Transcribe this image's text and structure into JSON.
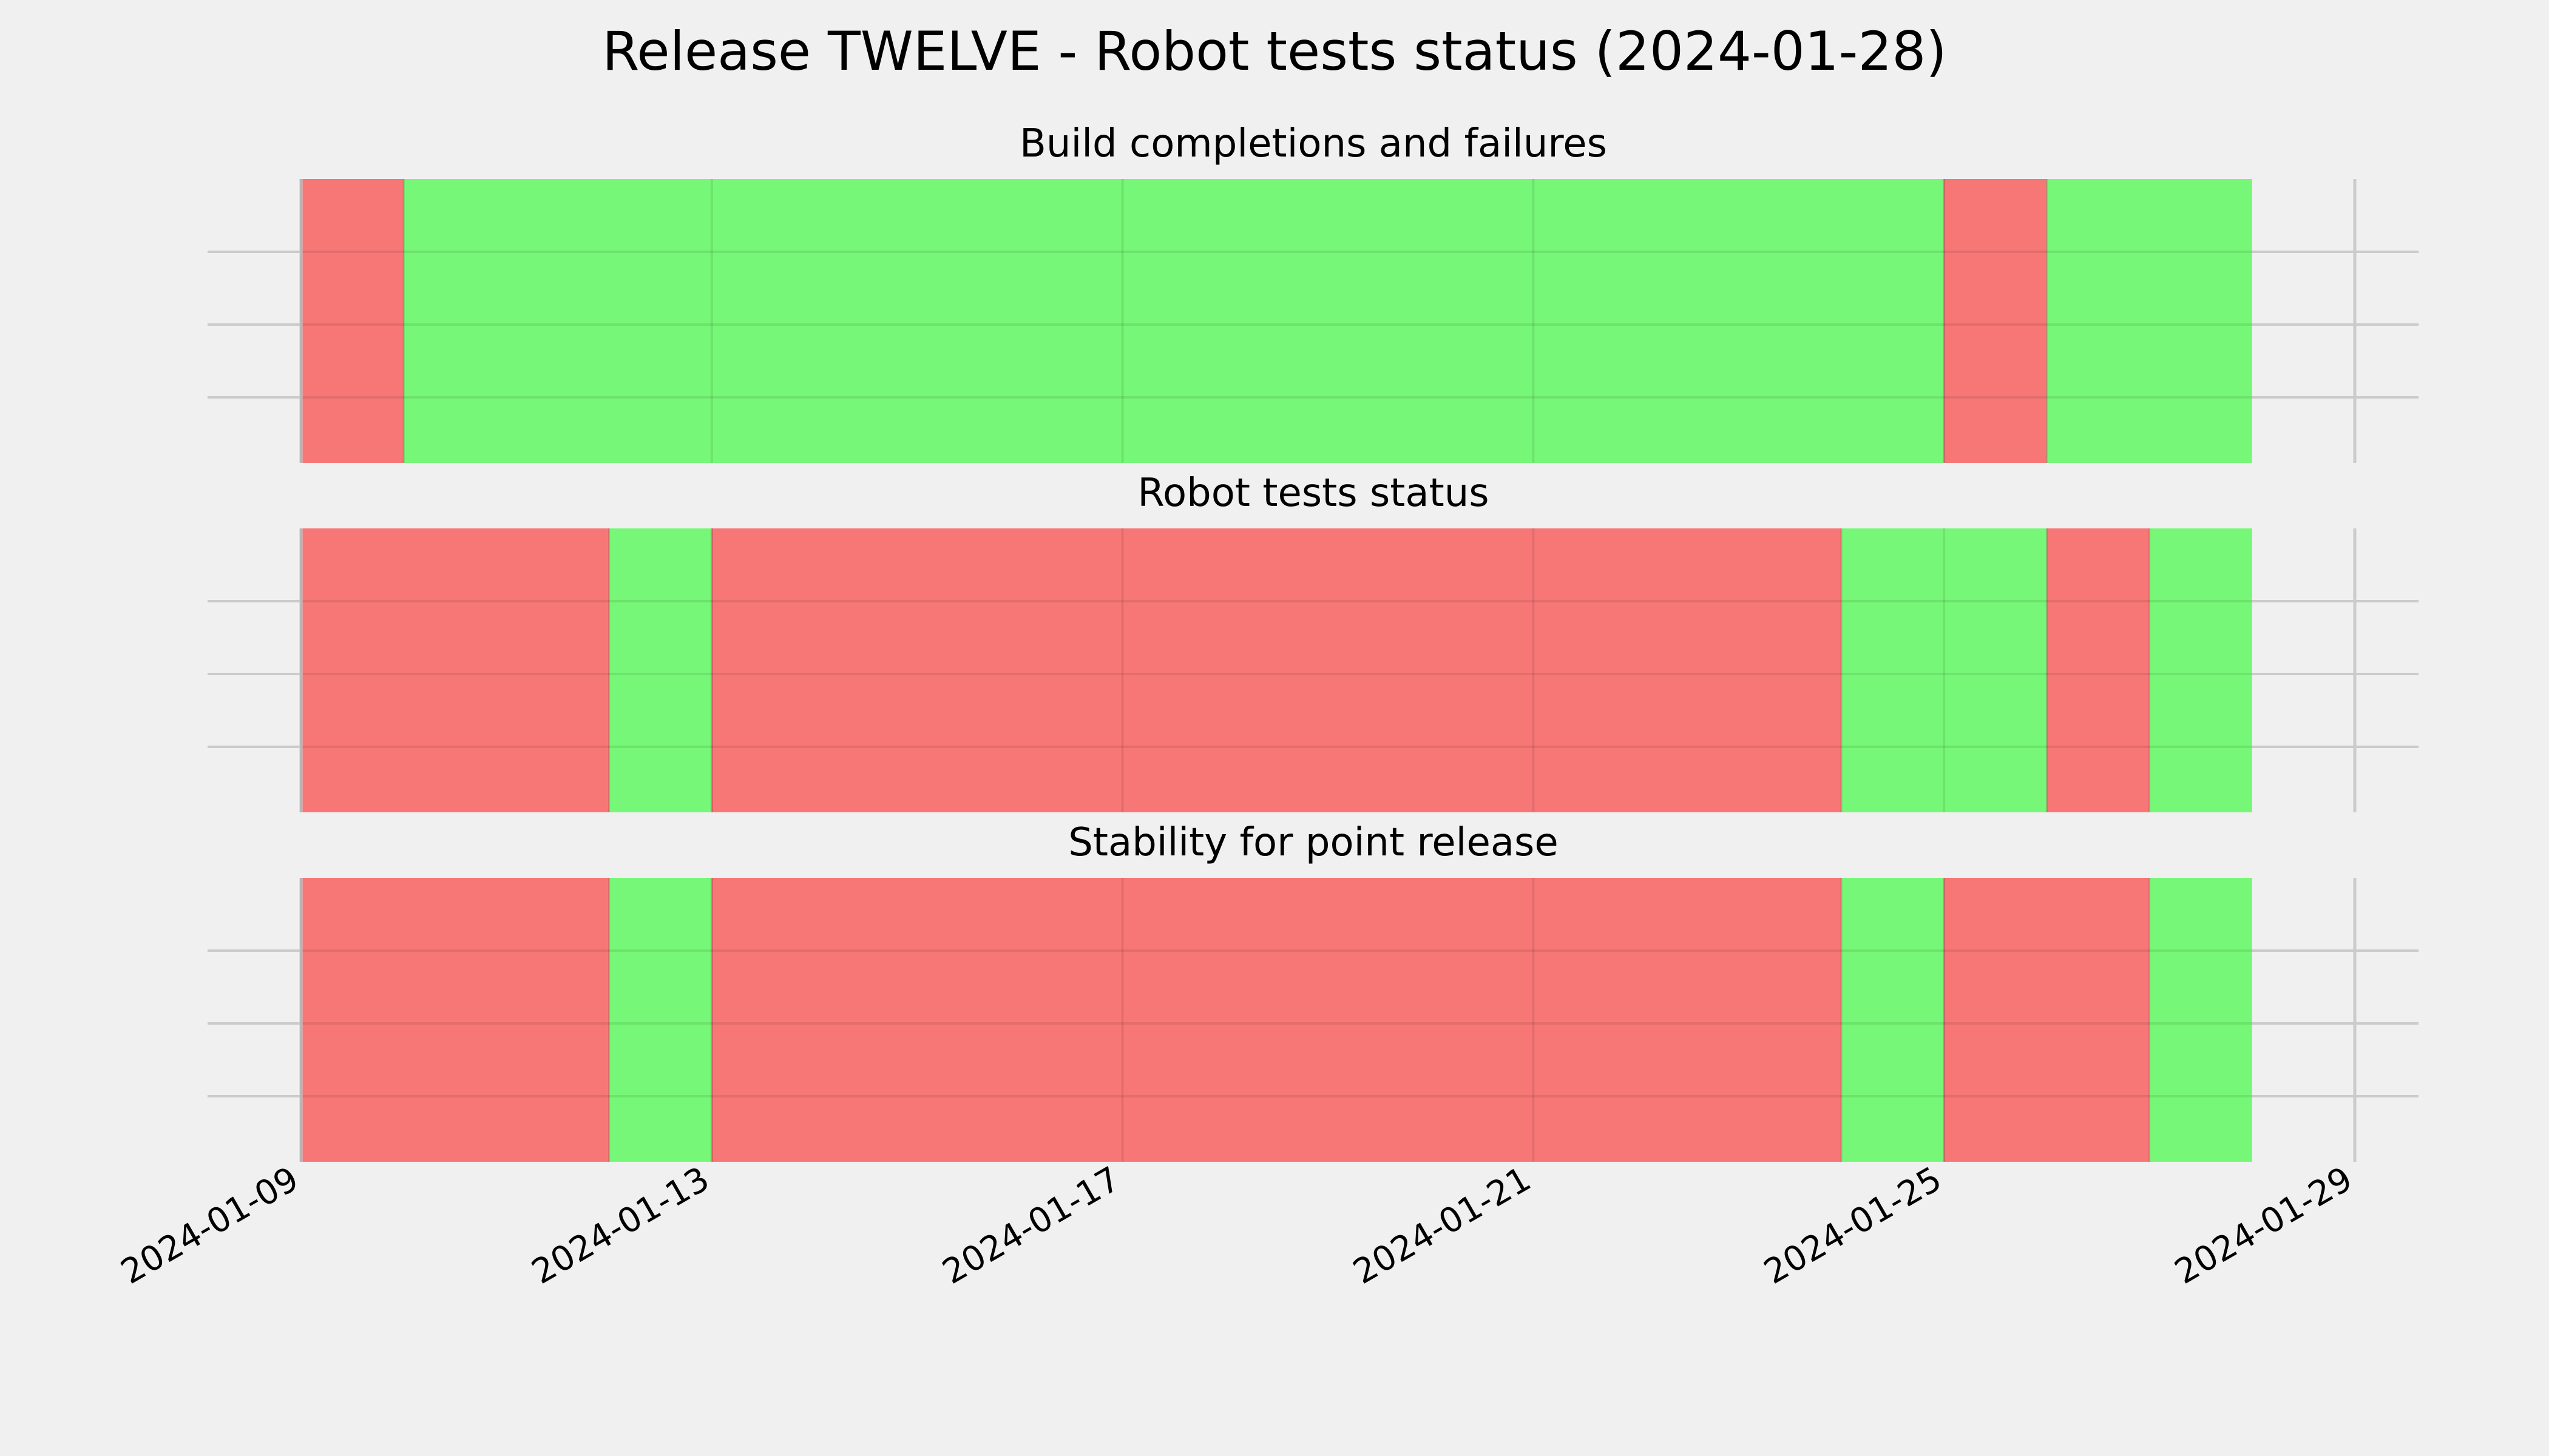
{
  "chart_data": {
    "type": "timeline",
    "title": "Release TWELVE - Robot tests status (2024-01-28)",
    "x_ticks": [
      "2024-01-09",
      "2024-01-13",
      "2024-01-17",
      "2024-01-21",
      "2024-01-25",
      "2024-01-29"
    ],
    "xlim": [
      "2024-01-09",
      "2024-01-29"
    ],
    "grid": true,
    "colors": {
      "pass": "#77f777",
      "fail": "#f77777",
      "background": "#f0f0f0",
      "grid": "#cbcbcb"
    },
    "panels": [
      {
        "title": "Build completions and failures",
        "segments": [
          {
            "start": "2024-01-09",
            "end": "2024-01-10",
            "status": "fail"
          },
          {
            "start": "2024-01-10",
            "end": "2024-01-25",
            "status": "pass"
          },
          {
            "start": "2024-01-25",
            "end": "2024-01-26",
            "status": "fail"
          },
          {
            "start": "2024-01-26",
            "end": "2024-01-28",
            "status": "pass"
          }
        ]
      },
      {
        "title": "Robot tests status",
        "segments": [
          {
            "start": "2024-01-09",
            "end": "2024-01-12",
            "status": "fail"
          },
          {
            "start": "2024-01-12",
            "end": "2024-01-13",
            "status": "pass"
          },
          {
            "start": "2024-01-13",
            "end": "2024-01-24",
            "status": "fail"
          },
          {
            "start": "2024-01-24",
            "end": "2024-01-26",
            "status": "pass"
          },
          {
            "start": "2024-01-26",
            "end": "2024-01-27",
            "status": "fail"
          },
          {
            "start": "2024-01-27",
            "end": "2024-01-28",
            "status": "pass"
          }
        ]
      },
      {
        "title": "Stability for point release",
        "segments": [
          {
            "start": "2024-01-09",
            "end": "2024-01-12",
            "status": "fail"
          },
          {
            "start": "2024-01-12",
            "end": "2024-01-13",
            "status": "pass"
          },
          {
            "start": "2024-01-13",
            "end": "2024-01-24",
            "status": "fail"
          },
          {
            "start": "2024-01-24",
            "end": "2024-01-25",
            "status": "pass"
          },
          {
            "start": "2024-01-25",
            "end": "2024-01-27",
            "status": "fail"
          },
          {
            "start": "2024-01-27",
            "end": "2024-01-28",
            "status": "pass"
          }
        ]
      }
    ]
  }
}
